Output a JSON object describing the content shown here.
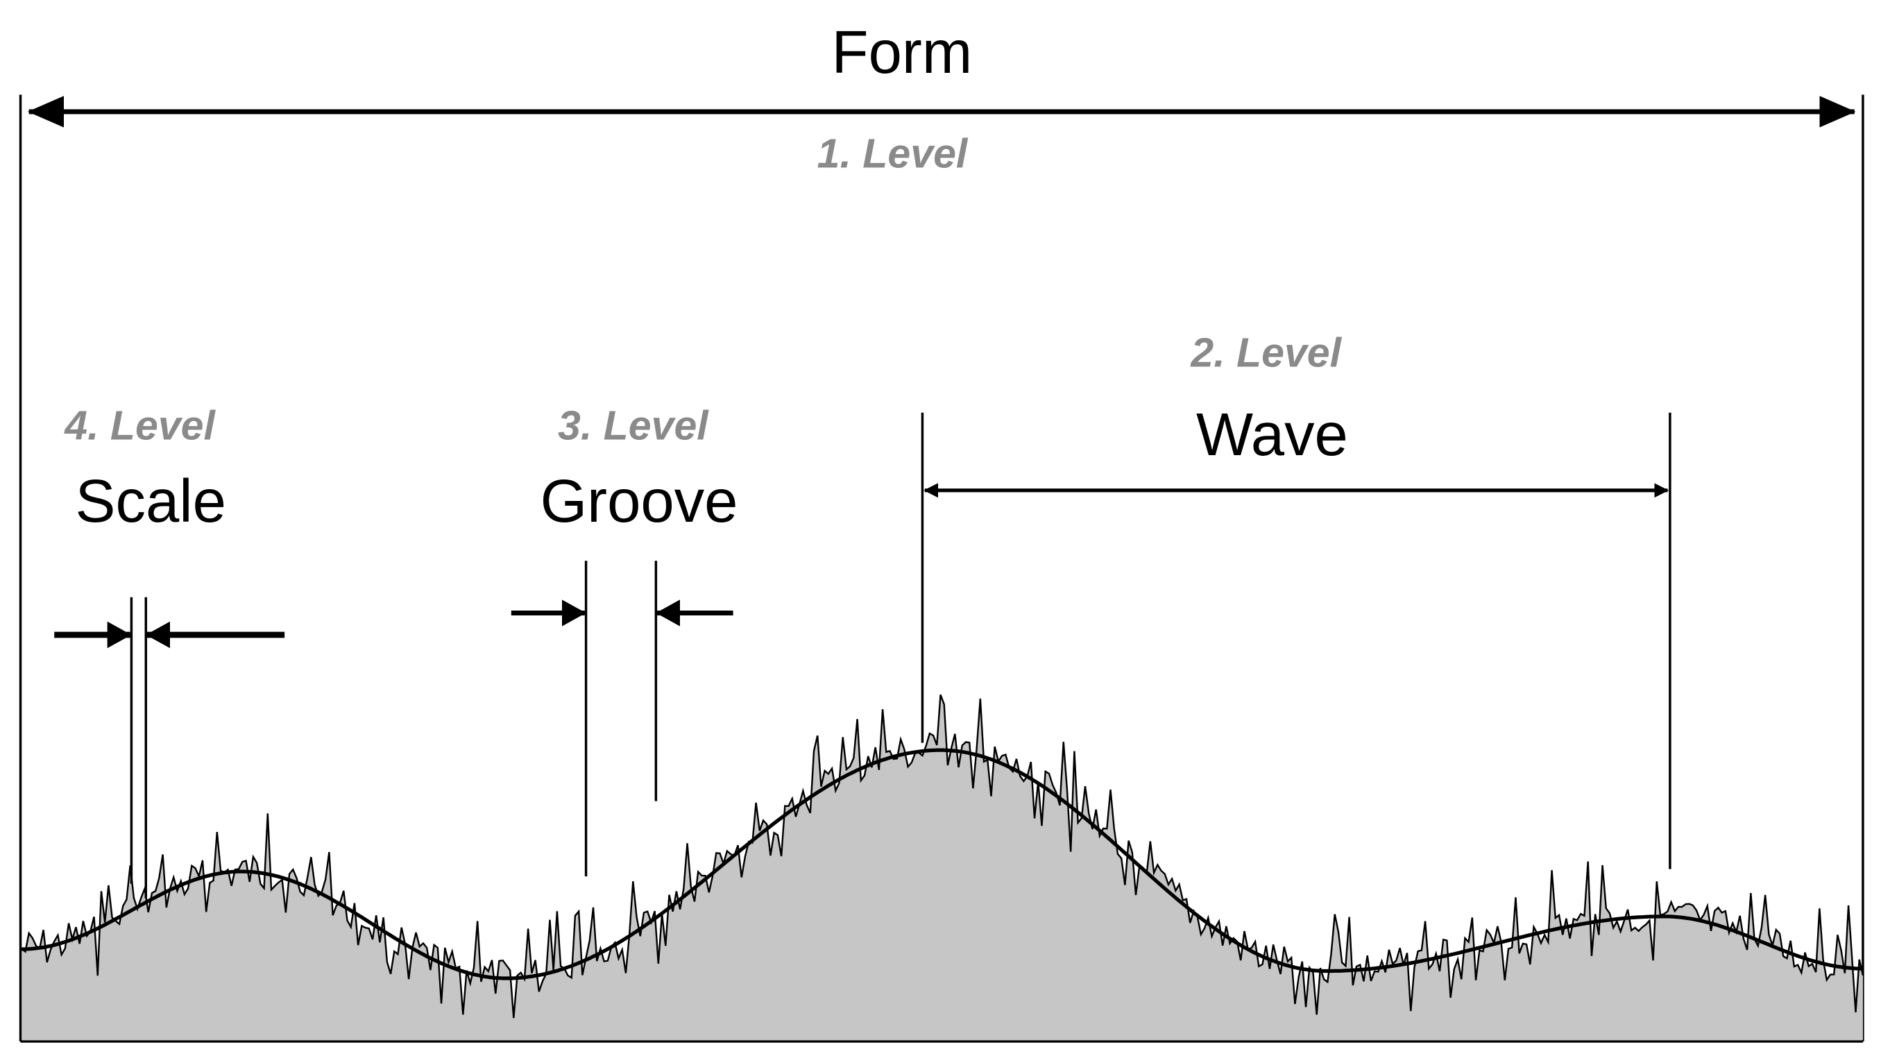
{
  "form": {
    "title": "Form",
    "level": "1. Level"
  },
  "wave": {
    "title": "Wave",
    "level": "2. Level"
  },
  "groove": {
    "title": "Groove",
    "level": "3. Level"
  },
  "scale": {
    "title": "Scale",
    "level": "4. Level"
  },
  "colors": {
    "profile_fill": "#c6c6c6",
    "lines": "#000000",
    "level_text": "#8a8a8a"
  }
}
